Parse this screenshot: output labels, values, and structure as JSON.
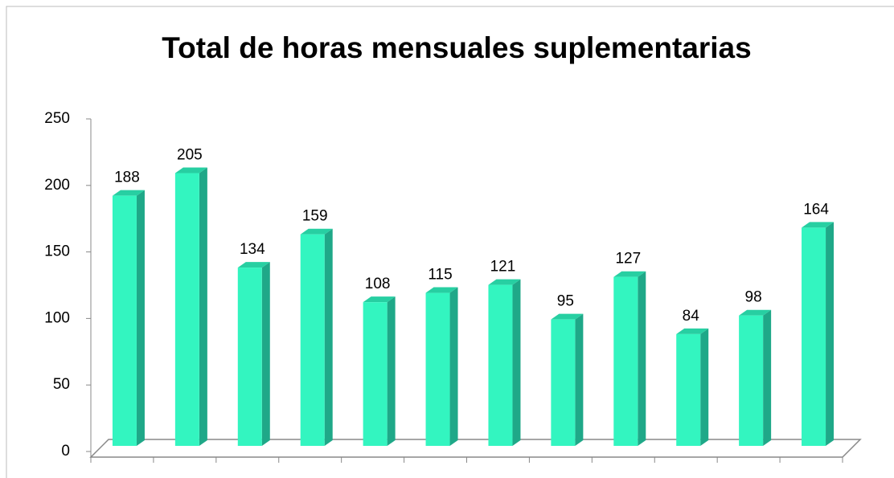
{
  "chart_data": {
    "type": "bar",
    "title": "Total de horas mensuales suplementarias",
    "categories": [
      null,
      null,
      null,
      null,
      null,
      null,
      null,
      null,
      null,
      null,
      null,
      null
    ],
    "values": [
      188,
      205,
      134,
      159,
      108,
      115,
      121,
      95,
      127,
      84,
      98,
      164
    ],
    "color": "#33f5c0",
    "ylim": [
      0,
      250
    ],
    "yticks": [
      0,
      50,
      100,
      150,
      200,
      250
    ],
    "grid": false
  }
}
